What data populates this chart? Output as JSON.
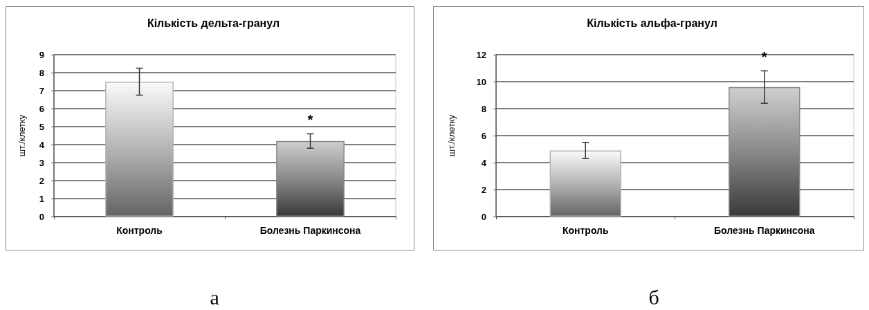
{
  "chart_data": [
    {
      "type": "bar",
      "title": "Кількість дельта-гранул",
      "ylabel": "шт./клетку",
      "categories": [
        "Контроль",
        "Болезнь Паркинсона"
      ],
      "values": [
        7.5,
        4.2
      ],
      "errors": [
        0.75,
        0.4
      ],
      "colors": [
        "#b4b4b4",
        "#898989"
      ],
      "ylim": [
        0,
        9
      ],
      "yticks": [
        0,
        1,
        2,
        3,
        4,
        5,
        6,
        7,
        8,
        9
      ],
      "grid": "y",
      "annotations": [
        {
          "text": "*",
          "x": "Болезнь Паркинсона",
          "y": 4.2
        },
        "а"
      ]
    },
    {
      "type": "bar",
      "title": "Кількість альфа-гранул",
      "ylabel": "шт./клетку",
      "categories": [
        "Контроль",
        "Болезнь Паркинсона"
      ],
      "values": [
        4.9,
        9.6
      ],
      "errors": [
        0.6,
        1.2
      ],
      "colors": [
        "#b4b4b4",
        "#898989"
      ],
      "ylim": [
        0,
        12
      ],
      "yticks": [
        0,
        2,
        4,
        6,
        8,
        10,
        12
      ],
      "grid": "y",
      "annotations": [
        {
          "text": "*",
          "x": "Болезнь Паркинсона",
          "y": 9.6
        },
        "б"
      ]
    }
  ]
}
